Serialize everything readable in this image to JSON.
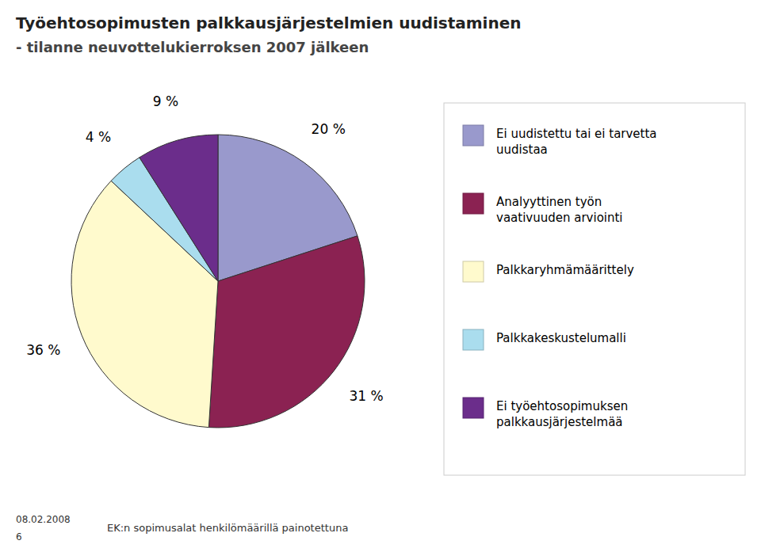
{
  "chart_data": {
    "type": "pie",
    "title": "Työehtosopimusten palkkausjärjestelmien uudistaminen",
    "subtitle": "- tilanne neuvottelukierroksen 2007 jälkeen",
    "categories": [
      "Ei uudistettu tai ei tarvetta\nuudistaa",
      "Analyyttinen työn\nvaativuuden arviointi",
      "Palkkaryhmämäärittely",
      "Palkkakeskustelumalli",
      "Ei työehtosopimuksen\npalkkausjärjestelmää"
    ],
    "values": [
      20,
      31,
      36,
      4,
      9
    ],
    "value_labels": [
      "20 %",
      "31 %",
      "36 %",
      "4 %",
      "9 %"
    ],
    "data_labels": true,
    "colors": [
      "#9999CC",
      "#8B2252",
      "#FFFACD",
      "#AADDEE",
      "#6B2D8B"
    ],
    "legend": "right",
    "annotations": [
      "08.02.2008",
      "6",
      "EK:n sopimusalat henkilömäärillä painotettuna"
    ]
  }
}
